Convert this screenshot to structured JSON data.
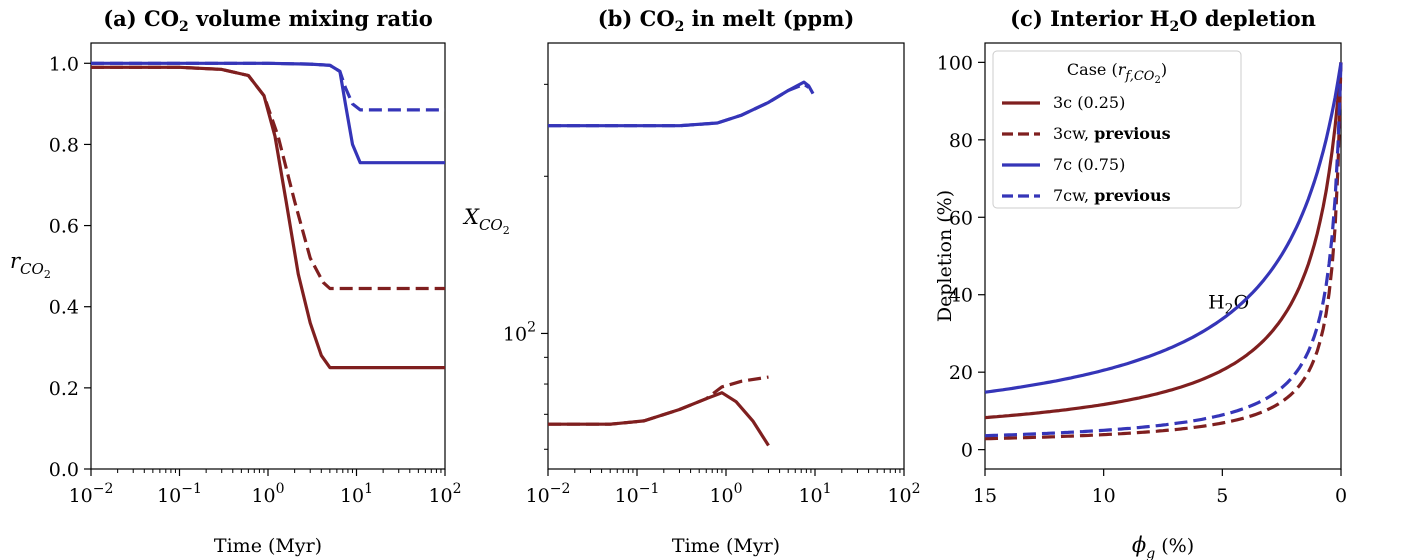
{
  "colors": {
    "red": "#7f1f1f",
    "blue": "#3535b8"
  },
  "chart_data": [
    {
      "type": "line",
      "title_html": "(a) CO<tspan font-size='14' dy='5'>2</tspan><tspan dy='-5'> volume mixing ratio</tspan>",
      "xlabel": "Time (Myr)",
      "ylabel": "r_CO2",
      "xscale": "log",
      "xlim": [
        0.01,
        100
      ],
      "ylim": [
        0.0,
        1.05
      ],
      "xticks": [
        "10^-2",
        "10^-1",
        "10^0",
        "10^1",
        "10^2"
      ],
      "yticks": [
        "0.0",
        "0.2",
        "0.4",
        "0.6",
        "0.8",
        "1.0"
      ],
      "grid": false,
      "series": [
        {
          "case": "3c",
          "color": "red",
          "dash": false,
          "points": [
            [
              0.01,
              0.99
            ],
            [
              0.1,
              0.99
            ],
            [
              0.3,
              0.985
            ],
            [
              0.6,
              0.97
            ],
            [
              0.9,
              0.92
            ],
            [
              1.2,
              0.82
            ],
            [
              1.6,
              0.66
            ],
            [
              2.2,
              0.48
            ],
            [
              3,
              0.36
            ],
            [
              4,
              0.28
            ],
            [
              5,
              0.25
            ],
            [
              10,
              0.25
            ],
            [
              100,
              0.25
            ]
          ]
        },
        {
          "case": "3cw",
          "color": "red",
          "dash": true,
          "points": [
            [
              0.01,
              0.99
            ],
            [
              0.1,
              0.99
            ],
            [
              0.3,
              0.985
            ],
            [
              0.6,
              0.97
            ],
            [
              0.9,
              0.92
            ],
            [
              1.3,
              0.82
            ],
            [
              2,
              0.66
            ],
            [
              3,
              0.52
            ],
            [
              4.2,
              0.46
            ],
            [
              5,
              0.445
            ],
            [
              10,
              0.445
            ],
            [
              100,
              0.445
            ]
          ]
        },
        {
          "case": "7c",
          "color": "blue",
          "dash": false,
          "points": [
            [
              0.01,
              1.0
            ],
            [
              1,
              1.0
            ],
            [
              3,
              0.998
            ],
            [
              5,
              0.995
            ],
            [
              6.5,
              0.98
            ],
            [
              7.5,
              0.9
            ],
            [
              9,
              0.8
            ],
            [
              11,
              0.755
            ],
            [
              100,
              0.755
            ]
          ]
        },
        {
          "case": "7cw",
          "color": "blue",
          "dash": true,
          "points": [
            [
              0.01,
              1.0
            ],
            [
              1,
              1.0
            ],
            [
              3,
              0.998
            ],
            [
              5,
              0.995
            ],
            [
              6.5,
              0.98
            ],
            [
              7.5,
              0.94
            ],
            [
              9,
              0.9
            ],
            [
              11,
              0.885
            ],
            [
              100,
              0.885
            ]
          ]
        }
      ]
    },
    {
      "type": "line",
      "title_html": "(b) CO<tspan font-size='14' dy='5'>2</tspan><tspan dy='-5'> in melt (ppm)</tspan>",
      "xlabel": "Time (Myr)",
      "ylabel": "X_CO2",
      "xscale": "log",
      "yscale": "log",
      "xlim": [
        0.01,
        100
      ],
      "ylim": [
        55,
        360
      ],
      "xticks": [
        "10^-2",
        "10^-1",
        "10^0",
        "10^1",
        "10^2"
      ],
      "yticks": [
        "10^2"
      ],
      "grid": false,
      "series": [
        {
          "case": "3c",
          "color": "red",
          "dash": false,
          "points": [
            [
              0.01,
              67
            ],
            [
              0.05,
              67
            ],
            [
              0.12,
              68
            ],
            [
              0.3,
              71.5
            ],
            [
              0.6,
              75
            ],
            [
              0.9,
              77
            ],
            [
              1.3,
              74
            ],
            [
              2,
              68
            ],
            [
              3,
              61
            ]
          ]
        },
        {
          "case": "3cw",
          "color": "red",
          "dash": true,
          "points": [
            [
              0.01,
              67
            ],
            [
              0.05,
              67
            ],
            [
              0.12,
              68
            ],
            [
              0.3,
              71.5
            ],
            [
              0.6,
              75
            ],
            [
              0.9,
              79
            ],
            [
              1.5,
              81
            ],
            [
              3,
              82.5
            ]
          ]
        },
        {
          "case": "7c",
          "color": "blue",
          "dash": false,
          "points": [
            [
              0.01,
              250
            ],
            [
              0.3,
              250
            ],
            [
              0.8,
              253
            ],
            [
              1.5,
              262
            ],
            [
              3,
              277
            ],
            [
              5,
              292
            ],
            [
              7.5,
              303
            ],
            [
              8.5,
              298
            ],
            [
              9.5,
              288
            ]
          ]
        },
        {
          "case": "7cw",
          "color": "blue",
          "dash": true,
          "points": [
            [
              0.01,
              250
            ],
            [
              0.3,
              250
            ],
            [
              0.8,
              253
            ],
            [
              1.5,
              262
            ],
            [
              3,
              277
            ],
            [
              5,
              292
            ],
            [
              7.5,
              300
            ],
            [
              8.5,
              296
            ]
          ]
        }
      ]
    },
    {
      "type": "line",
      "title_html": "(c) Interior H<tspan font-size='14' dy='5'>2</tspan><tspan dy='-5'>O depletion</tspan>",
      "xlabel": "phi_g (%)",
      "ylabel": "Depletion (%)",
      "xlim": [
        15,
        0
      ],
      "ylim": [
        -5,
        105
      ],
      "xticks": [
        "15",
        "10",
        "5",
        "0"
      ],
      "yticks": [
        "0",
        "20",
        "40",
        "60",
        "80",
        "100"
      ],
      "grid": false,
      "annotation_html": "H<tspan font-size='14' dy='5'>2</tspan><tspan dy='-5'>O</tspan>",
      "legend": {
        "title_html": "Case (<tspan font-style='italic'>r</tspan><tspan font-style='italic' font-size='13' dy='5'>f,CO</tspan><tspan font-size='10' dy='3'>2</tspan><tspan dy='-8'>)</tspan>",
        "placement": "top-left",
        "entries": [
          {
            "label": "3c (0.25)",
            "bold": "",
            "color": "red",
            "dash": false
          },
          {
            "label": "3cw, ",
            "bold": "previous",
            "color": "red",
            "dash": true
          },
          {
            "label": "7c (0.75)",
            "bold": "",
            "color": "blue",
            "dash": false
          },
          {
            "label": "7cw, ",
            "bold": "previous",
            "color": "blue",
            "dash": true
          }
        ]
      },
      "series": [
        {
          "case": "3c",
          "color": "red",
          "dash": false,
          "curve": {
            "A": 0.5,
            "B": 0.8
          }
        },
        {
          "case": "3cw",
          "color": "red",
          "dash": true,
          "curve": {
            "A": 2.0,
            "B": 3.0
          }
        },
        {
          "case": "7c",
          "color": "blue",
          "dash": false,
          "curve": {
            "A": 0.25,
            "B": 0.4
          }
        },
        {
          "case": "7cw",
          "color": "blue",
          "dash": true,
          "curve": {
            "A": 1.5,
            "B": 2.2
          }
        }
      ]
    }
  ]
}
